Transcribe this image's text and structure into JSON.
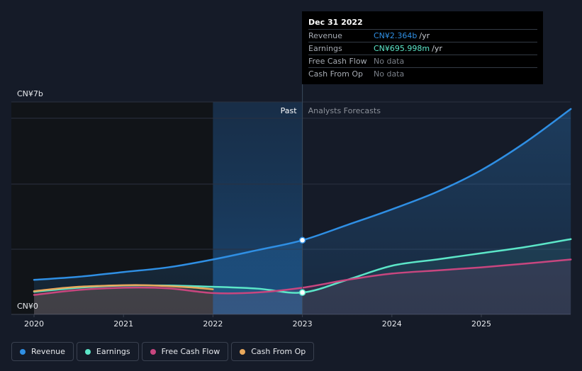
{
  "tooltip": {
    "date": "Dec 31 2022",
    "rows": [
      {
        "label": "Revenue",
        "value": "CN¥2.364b",
        "unit": "/yr",
        "color": "#2f8fe4"
      },
      {
        "label": "Earnings",
        "value": "CN¥695.998m",
        "unit": "/yr",
        "color": "#5ce6c8"
      },
      {
        "label": "Free Cash Flow",
        "value": "No data",
        "unit": "",
        "color": ""
      },
      {
        "label": "Cash From Op",
        "value": "No data",
        "unit": "",
        "color": ""
      }
    ]
  },
  "legend": [
    {
      "label": "Revenue",
      "color": "#2f8fe4"
    },
    {
      "label": "Earnings",
      "color": "#5ce6c8"
    },
    {
      "label": "Free Cash Flow",
      "color": "#c8467f"
    },
    {
      "label": "Cash From Op",
      "color": "#e8a85c"
    }
  ],
  "chart_data": {
    "type": "line",
    "y_top_label": "CN¥7b",
    "y_bottom_label": "CN¥0",
    "ylim": [
      0,
      7
    ],
    "y_unit": "CN¥ billions",
    "xlim": [
      2020,
      2026
    ],
    "x_ticks": [
      2020,
      2021,
      2022,
      2023,
      2024,
      2025
    ],
    "past_label": "Past",
    "forecast_label": "Analysts Forecasts",
    "past_highlight_start": 2022,
    "divider_x": 2023,
    "series": [
      {
        "name": "Revenue",
        "color": "#2f8fe4",
        "x": [
          2020,
          2020.5,
          2021,
          2021.5,
          2022,
          2022.5,
          2023,
          2023.5,
          2024,
          2024.5,
          2025,
          2025.5,
          2026
        ],
        "y": [
          1.1,
          1.2,
          1.35,
          1.5,
          1.75,
          2.05,
          2.364,
          2.85,
          3.35,
          3.9,
          4.6,
          5.5,
          6.55
        ]
      },
      {
        "name": "Earnings",
        "color": "#5ce6c8",
        "x": [
          2020,
          2020.5,
          2021,
          2021.5,
          2022,
          2022.5,
          2023,
          2023.5,
          2024,
          2024.5,
          2025,
          2025.5,
          2026
        ],
        "y": [
          0.72,
          0.85,
          0.92,
          0.92,
          0.88,
          0.82,
          0.696,
          1.1,
          1.55,
          1.75,
          1.95,
          2.15,
          2.4
        ]
      },
      {
        "name": "Free Cash Flow",
        "color": "#c8467f",
        "x": [
          2020,
          2020.5,
          2021,
          2021.5,
          2022,
          2022.5,
          2023,
          2023.5,
          2024,
          2024.5,
          2025,
          2025.5,
          2026
        ],
        "y": [
          0.62,
          0.78,
          0.85,
          0.83,
          0.68,
          0.7,
          0.85,
          1.1,
          1.3,
          1.4,
          1.5,
          1.62,
          1.75
        ]
      },
      {
        "name": "Cash From Op",
        "color": "#e8a85c",
        "x": [
          2020,
          2020.25,
          2020.5,
          2020.75,
          2021,
          2021.25,
          2021.5,
          2021.75,
          2022
        ],
        "y": [
          0.74,
          0.82,
          0.88,
          0.91,
          0.93,
          0.93,
          0.9,
          0.86,
          0.8
        ]
      }
    ],
    "highlight_points": [
      {
        "series": "Revenue",
        "x": 2023,
        "y": 2.364
      },
      {
        "series": "Earnings",
        "x": 2023,
        "y": 0.696
      }
    ]
  }
}
